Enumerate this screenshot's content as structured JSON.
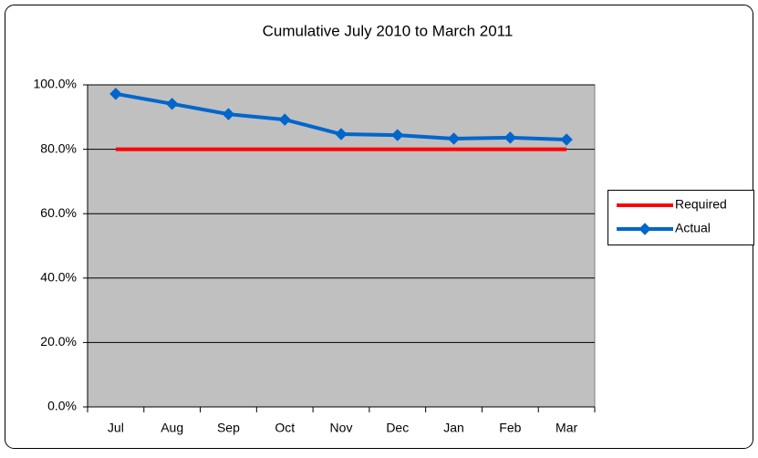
{
  "chart_data": {
    "type": "line",
    "title": "Cumulative July 2010 to March 2011",
    "categories": [
      "Jul",
      "Aug",
      "Sep",
      "Oct",
      "Nov",
      "Dec",
      "Jan",
      "Feb",
      "Mar"
    ],
    "series": [
      {
        "name": "Required",
        "color": "#ff0000",
        "marker": "none",
        "values": [
          80,
          80,
          80,
          80,
          80,
          80,
          80,
          80,
          80
        ]
      },
      {
        "name": "Actual",
        "color": "#0066cc",
        "marker": "diamond",
        "values": [
          97.2,
          94.1,
          90.9,
          89.2,
          84.7,
          84.4,
          83.3,
          83.6,
          83.0
        ]
      }
    ],
    "ylim": [
      0,
      100
    ],
    "yticks": [
      {
        "value": 0,
        "label": "0.0%"
      },
      {
        "value": 20,
        "label": "20.0%"
      },
      {
        "value": 40,
        "label": "40.0%"
      },
      {
        "value": 60,
        "label": "60.0%"
      },
      {
        "value": 80,
        "label": "80.0%"
      },
      {
        "value": 100,
        "label": "100.0%"
      }
    ],
    "grid": true,
    "plot_background": "#c0c0c0",
    "legend": "right"
  }
}
